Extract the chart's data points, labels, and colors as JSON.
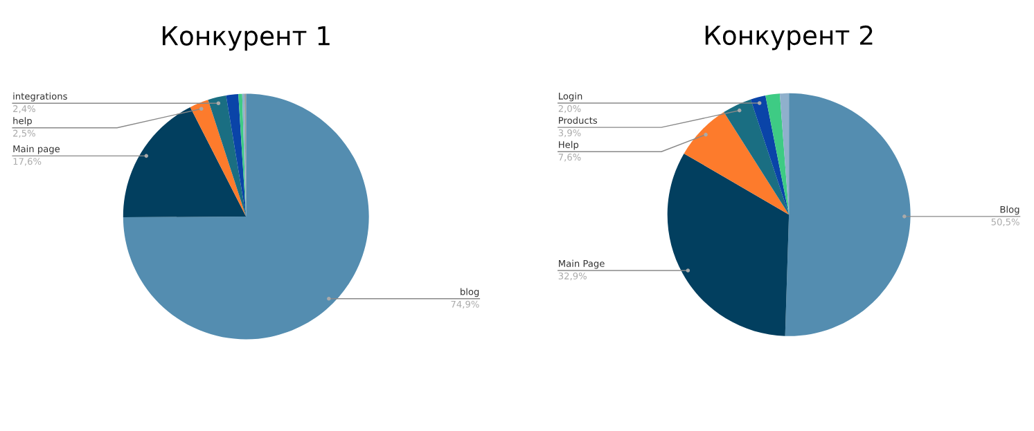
{
  "chart_data": [
    {
      "type": "pie",
      "title": "Конкурент 1",
      "categories": [
        "blog",
        "Main page",
        "help",
        "integrations",
        null,
        null,
        null,
        null
      ],
      "values": [
        74.9,
        17.6,
        2.5,
        2.4,
        1.6,
        0.5,
        0.3,
        0.2
      ],
      "colors": [
        "#548db0",
        "#023f5f",
        "#fd7b2c",
        "#1a6e82",
        "#0a44a8",
        "#3ecb84",
        "#8fb0cc",
        "#9a9a9a"
      ],
      "value_labels": [
        "74,9%",
        "17,6%",
        "2,5%",
        "2,4%",
        null,
        null,
        null,
        null
      ],
      "legend": false
    },
    {
      "type": "pie",
      "title": "Конкурент 2",
      "categories": [
        "Blog",
        "Main Page",
        "Help",
        "Products",
        "Login",
        null,
        null
      ],
      "values": [
        50.5,
        32.9,
        7.6,
        3.9,
        2.0,
        1.9,
        1.2
      ],
      "colors": [
        "#548db0",
        "#023f5f",
        "#fd7b2c",
        "#1a6e82",
        "#0a44a8",
        "#3ecb84",
        "#8fb0cc"
      ],
      "value_labels": [
        "50,5%",
        "32,9%",
        "7,6%",
        "3,9%",
        "2,0%",
        null,
        null
      ],
      "legend": false
    }
  ]
}
